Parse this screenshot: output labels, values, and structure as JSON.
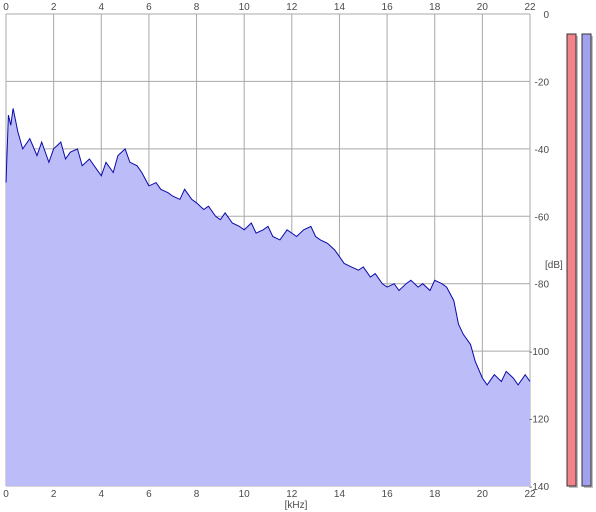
{
  "chart_data": {
    "type": "area",
    "xlabel": "[kHz]",
    "ylabel": "[dB]",
    "x_ticks": [
      "0",
      "2",
      "4",
      "6",
      "8",
      "10",
      "12",
      "14",
      "16",
      "18",
      "20",
      "22"
    ],
    "y_ticks": [
      "0",
      "-20",
      "-40",
      "-60",
      "-80",
      "-100",
      "-120",
      "-140"
    ],
    "xlim": [
      0,
      22
    ],
    "ylim": [
      -140,
      0
    ],
    "grid": true,
    "fill_color": "#bcbdf8",
    "line_color": "#0a0aa8",
    "series": [
      {
        "x": [
          0,
          0.1,
          0.2,
          0.3,
          0.5,
          0.7,
          1,
          1.3,
          1.5,
          1.8,
          2,
          2.3,
          2.5,
          2.7,
          3,
          3.2,
          3.5,
          3.8,
          4,
          4.2,
          4.5,
          4.7,
          5,
          5.2,
          5.5,
          5.7,
          6,
          6.3,
          6.5,
          6.8,
          7,
          7.3,
          7.5,
          7.8,
          8,
          8.3,
          8.5,
          8.8,
          9,
          9.2,
          9.5,
          9.8,
          10,
          10.3,
          10.5,
          10.8,
          11,
          11.2,
          11.5,
          11.8,
          12,
          12.2,
          12.5,
          12.8,
          13,
          13.2,
          13.5,
          13.8,
          14,
          14.2,
          14.5,
          14.8,
          15,
          15.3,
          15.5,
          15.8,
          16,
          16.3,
          16.5,
          16.8,
          17,
          17.3,
          17.5,
          17.8,
          18,
          18.3,
          18.5,
          18.8,
          19,
          19.2,
          19.5,
          19.7,
          20,
          20.2,
          20.5,
          20.8,
          21,
          21.3,
          21.5,
          21.8,
          22
        ],
        "y": [
          -50,
          -30,
          -33,
          -28,
          -35,
          -40,
          -37,
          -42,
          -38,
          -44,
          -40,
          -38,
          -43,
          -41,
          -40,
          -45,
          -43,
          -46,
          -48,
          -44,
          -47,
          -42,
          -40,
          -44,
          -45,
          -47,
          -51,
          -50,
          -52,
          -53,
          -54,
          -55,
          -52,
          -55,
          -56,
          -58,
          -57,
          -60,
          -61,
          -59,
          -62,
          -63,
          -64,
          -62,
          -65,
          -64,
          -63,
          -66,
          -67,
          -64,
          -65,
          -66,
          -64,
          -63,
          -66,
          -67,
          -68,
          -70,
          -72,
          -74,
          -75,
          -76,
          -75,
          -78,
          -77,
          -80,
          -81,
          -80,
          -82,
          -80,
          -79,
          -81,
          -80,
          -82,
          -79,
          -80,
          -81,
          -85,
          -92,
          -95,
          -98,
          -103,
          -108,
          -110,
          -107,
          -109,
          -106,
          -108,
          -110,
          -107,
          -109
        ]
      }
    ]
  },
  "meters": {
    "left": {
      "color": "#f2838a",
      "level": 1.0
    },
    "right": {
      "color": "#a0a2ee",
      "level": 1.0
    }
  }
}
